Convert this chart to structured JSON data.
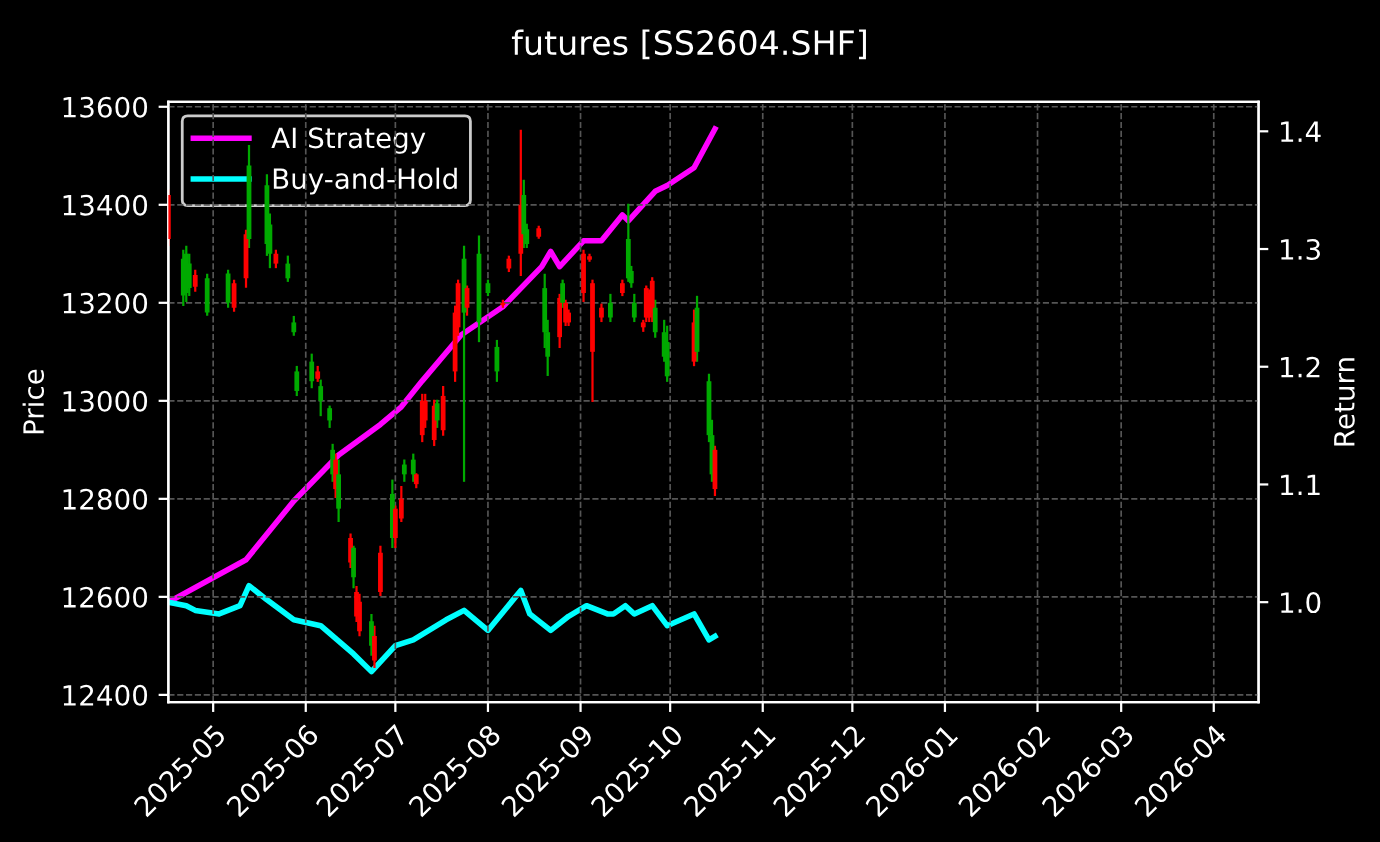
{
  "chart_data": {
    "type": "candlestick",
    "title": "futures [SS2604.SHF]",
    "ylabel": "Price",
    "y2label": "Return",
    "x": [
      "2025-04-16",
      "2025-04-21",
      "2025-04-22",
      "2025-04-23",
      "2025-04-25",
      "2025-04-29",
      "2025-05-06",
      "2025-05-08",
      "2025-05-12",
      "2025-05-13",
      "2025-05-19",
      "2025-05-20",
      "2025-05-22",
      "2025-05-26",
      "2025-05-28",
      "2025-05-29",
      "2025-06-03",
      "2025-06-05",
      "2025-06-06",
      "2025-06-09",
      "2025-06-10",
      "2025-06-11",
      "2025-06-12",
      "2025-06-16",
      "2025-06-17",
      "2025-06-18",
      "2025-06-19",
      "2025-06-23",
      "2025-06-24",
      "2025-06-26",
      "2025-06-30",
      "2025-07-01",
      "2025-07-03",
      "2025-07-04",
      "2025-07-07",
      "2025-07-08",
      "2025-07-10",
      "2025-07-11",
      "2025-07-14",
      "2025-07-15",
      "2025-07-17",
      "2025-07-21",
      "2025-07-22",
      "2025-07-24",
      "2025-07-25",
      "2025-07-29",
      "2025-08-01",
      "2025-08-04",
      "2025-08-06",
      "2025-08-08",
      "2025-08-12",
      "2025-08-13",
      "2025-08-14",
      "2025-08-18",
      "2025-08-20",
      "2025-08-21",
      "2025-08-25",
      "2025-08-26",
      "2025-08-27",
      "2025-08-28",
      "2025-09-02",
      "2025-09-04",
      "2025-09-05",
      "2025-09-08",
      "2025-09-11",
      "2025-09-15",
      "2025-09-17",
      "2025-09-18",
      "2025-09-19",
      "2025-09-22",
      "2025-09-23",
      "2025-09-24",
      "2025-09-25",
      "2025-09-26",
      "2025-09-29",
      "2025-09-30",
      "2025-10-09",
      "2025-10-10",
      "2025-10-14",
      "2025-10-15",
      "2025-10-16"
    ],
    "ohlc": [
      [
        13420,
        13429,
        13318,
        13330
      ],
      [
        13215,
        13306,
        13196,
        13290
      ],
      [
        13220,
        13314,
        13204,
        13300
      ],
      [
        13230,
        13298,
        13216,
        13280
      ],
      [
        13257,
        13265,
        13225,
        13233
      ],
      [
        13180,
        13257,
        13176,
        13250
      ],
      [
        13200,
        13265,
        13192,
        13260
      ],
      [
        13240,
        13245,
        13184,
        13190
      ],
      [
        13340,
        13347,
        13233,
        13250
      ],
      [
        13330,
        13520,
        13314,
        13480
      ],
      [
        13320,
        13460,
        13298,
        13440
      ],
      [
        13300,
        13380,
        13273,
        13360
      ],
      [
        13300,
        13306,
        13273,
        13280
      ],
      [
        13250,
        13294,
        13245,
        13280
      ],
      [
        13140,
        13171,
        13135,
        13160
      ],
      [
        13020,
        13069,
        13012,
        13060
      ],
      [
        13040,
        13094,
        13028,
        13080
      ],
      [
        13060,
        13069,
        13041,
        13045
      ],
      [
        13000,
        13041,
        12971,
        13030
      ],
      [
        12960,
        12988,
        12947,
        12985
      ],
      [
        12850,
        12910,
        12837,
        12900
      ],
      [
        12880,
        12890,
        12804,
        12820
      ],
      [
        12780,
        12878,
        12755,
        12850
      ],
      [
        12720,
        12727,
        12661,
        12670
      ],
      [
        12640,
        12702,
        12620,
        12700
      ],
      [
        12610,
        12620,
        12551,
        12560
      ],
      [
        12590,
        12604,
        12522,
        12530
      ],
      [
        12500,
        12563,
        12482,
        12550
      ],
      [
        12520,
        12539,
        12457,
        12470
      ],
      [
        12690,
        12702,
        12604,
        12610
      ],
      [
        12720,
        12837,
        12702,
        12810
      ],
      [
        12780,
        12784,
        12702,
        12720
      ],
      [
        12800,
        12824,
        12755,
        12760
      ],
      [
        12850,
        12878,
        12837,
        12870
      ],
      [
        12850,
        12890,
        12837,
        12880
      ],
      [
        12850,
        12850,
        12824,
        12830
      ],
      [
        13000,
        13012,
        12918,
        12930
      ],
      [
        13000,
        13012,
        12947,
        12960
      ],
      [
        12990,
        13000,
        12910,
        12920
      ],
      [
        12960,
        13000,
        12947,
        12995
      ],
      [
        13010,
        13028,
        12931,
        12940
      ],
      [
        13180,
        13192,
        13041,
        13060
      ],
      [
        13240,
        13245,
        13135,
        13150
      ],
      [
        13180,
        13314,
        12837,
        13290
      ],
      [
        13230,
        13233,
        13176,
        13190
      ],
      [
        13160,
        13335,
        13122,
        13300
      ],
      [
        13220,
        13245,
        13216,
        13240
      ],
      [
        13060,
        13122,
        13041,
        13110
      ],
      [
        13200,
        13204,
        13192,
        13195
      ],
      [
        13290,
        13294,
        13265,
        13270
      ],
      [
        13400,
        13551,
        13257,
        13300
      ],
      [
        13340,
        13449,
        13314,
        13420
      ],
      [
        13320,
        13359,
        13314,
        13350
      ],
      [
        13352,
        13355,
        13333,
        13335
      ],
      [
        13140,
        13257,
        13110,
        13230
      ],
      [
        13090,
        13163,
        13053,
        13140
      ],
      [
        13210,
        13216,
        13110,
        13130
      ],
      [
        13200,
        13245,
        13192,
        13240
      ],
      [
        13200,
        13204,
        13155,
        13160
      ],
      [
        13180,
        13184,
        13155,
        13160
      ],
      [
        13300,
        13306,
        13204,
        13220
      ],
      [
        13295,
        13298,
        13286,
        13288
      ],
      [
        13240,
        13245,
        13000,
        13100
      ],
      [
        13190,
        13196,
        13163,
        13170
      ],
      [
        13170,
        13216,
        13163,
        13200
      ],
      [
        13240,
        13245,
        13216,
        13220
      ],
      [
        13250,
        13400,
        13245,
        13330
      ],
      [
        13240,
        13273,
        13233,
        13265
      ],
      [
        13170,
        13216,
        13163,
        13200
      ],
      [
        13160,
        13163,
        13143,
        13150
      ],
      [
        13230,
        13233,
        13163,
        13170
      ],
      [
        13220,
        13225,
        13163,
        13170
      ],
      [
        13245,
        13250,
        13163,
        13180
      ],
      [
        13140,
        13204,
        13131,
        13190
      ],
      [
        13090,
        13163,
        13082,
        13140
      ],
      [
        13050,
        13151,
        13041,
        13120
      ],
      [
        13160,
        13184,
        13073,
        13080
      ],
      [
        13100,
        13212,
        13082,
        13190
      ],
      [
        12930,
        13053,
        12918,
        13040
      ],
      [
        12850,
        12959,
        12837,
        12930
      ],
      [
        12900,
        12906,
        12808,
        12820
      ]
    ],
    "series": [
      {
        "name": "AI Strategy",
        "color": "#ff00ff",
        "type": "line",
        "axis": "y2",
        "x": [
          "2025-04-16",
          "2025-05-12",
          "2025-05-28",
          "2025-06-12",
          "2025-06-26",
          "2025-07-03",
          "2025-07-10",
          "2025-07-23",
          "2025-08-06",
          "2025-08-19",
          "2025-08-22",
          "2025-08-25",
          "2025-09-02",
          "2025-09-08",
          "2025-09-15",
          "2025-09-17",
          "2025-09-26",
          "2025-09-30",
          "2025-10-09",
          "2025-10-16"
        ],
        "values": [
          1.0,
          1.036,
          1.086,
          1.125,
          1.151,
          1.166,
          1.188,
          1.227,
          1.251,
          1.285,
          1.298,
          1.285,
          1.307,
          1.307,
          1.329,
          1.324,
          1.349,
          1.354,
          1.369,
          1.402
        ]
      },
      {
        "name": "Buy-and-Hold",
        "color": "#00ffff",
        "type": "line",
        "axis": "y2",
        "x": [
          "2025-04-16",
          "2025-04-22",
          "2025-04-25",
          "2025-05-03",
          "2025-05-10",
          "2025-05-13",
          "2025-05-19",
          "2025-05-28",
          "2025-06-06",
          "2025-06-17",
          "2025-06-23",
          "2025-07-01",
          "2025-07-07",
          "2025-07-18",
          "2025-07-24",
          "2025-08-01",
          "2025-08-12",
          "2025-08-15",
          "2025-08-22",
          "2025-08-28",
          "2025-09-03",
          "2025-09-10",
          "2025-09-12",
          "2025-09-16",
          "2025-09-19",
          "2025-09-25",
          "2025-09-30",
          "2025-10-09",
          "2025-10-14",
          "2025-10-16"
        ],
        "values": [
          1.0,
          0.997,
          0.993,
          0.99,
          0.997,
          1.014,
          1.002,
          0.985,
          0.98,
          0.956,
          0.941,
          0.963,
          0.968,
          0.985,
          0.993,
          0.976,
          1.01,
          0.99,
          0.976,
          0.988,
          0.997,
          0.99,
          0.99,
          0.997,
          0.99,
          0.997,
          0.98,
          0.99,
          0.968,
          0.971
        ]
      }
    ],
    "xlim": [
      "2025-04-16",
      "2026-04-16"
    ],
    "xticks": [
      "2025-05",
      "2025-06",
      "2025-07",
      "2025-08",
      "2025-09",
      "2025-10",
      "2025-11",
      "2025-12",
      "2026-01",
      "2026-02",
      "2026-03",
      "2026-04"
    ],
    "ylim": [
      12385,
      13610
    ],
    "yticks": [
      12400,
      12600,
      12800,
      13000,
      13200,
      13400,
      13600
    ],
    "y2lim": [
      0.915,
      1.425
    ],
    "y2ticks": [
      {
        "value": 1,
        "label": "1.0"
      },
      1.1,
      1.2,
      1.3,
      1.4
    ],
    "grid": true,
    "legend": "top left"
  }
}
